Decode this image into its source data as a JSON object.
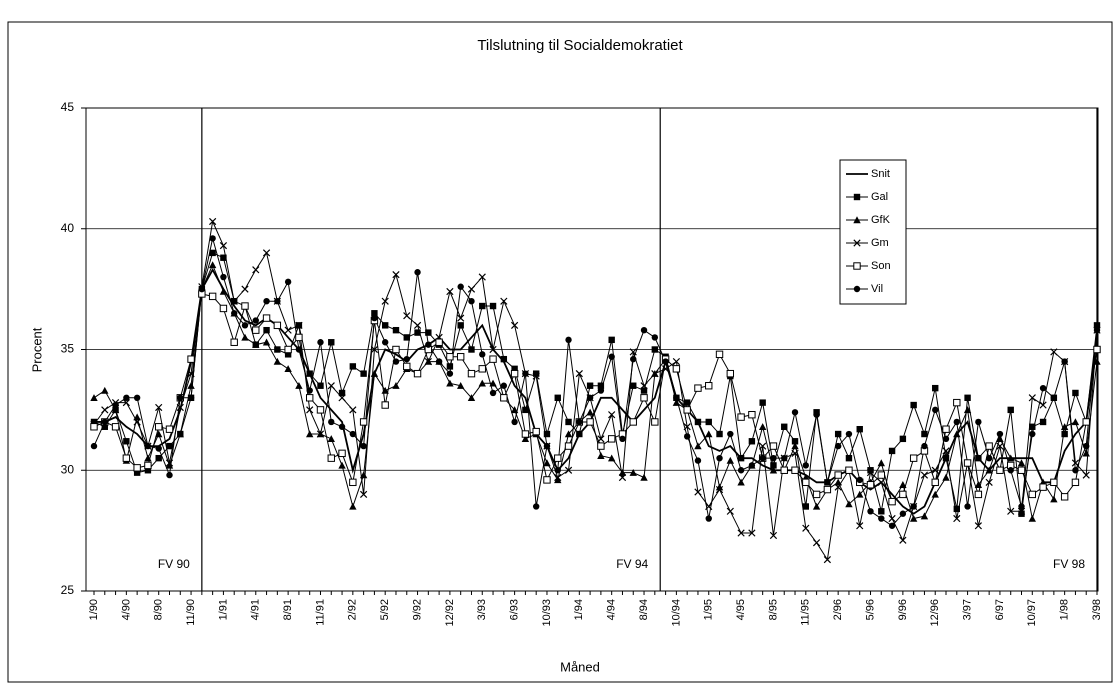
{
  "chart_data": {
    "type": "line",
    "title": "Tilslutning til Socialdemokratiet",
    "y_label": "Procent",
    "x_label": "Måned",
    "ylim": [
      25,
      45
    ],
    "yticks": [
      25,
      30,
      35,
      40,
      45
    ],
    "grid": true,
    "legend": "upper right",
    "annotations": [
      {
        "text": "FV 90",
        "x": 10
      },
      {
        "text": "FV 94",
        "x": 52.5
      },
      {
        "text": "FV 98",
        "x": 93
      }
    ],
    "categories": [
      "1/90",
      null,
      null,
      "4/90",
      null,
      null,
      "8/90",
      null,
      null,
      "11/90",
      null,
      null,
      "1/91",
      null,
      null,
      "4/91",
      null,
      null,
      "8/91",
      null,
      null,
      "11/91",
      null,
      null,
      "2/92",
      null,
      null,
      "5/92",
      null,
      null,
      "9/92",
      null,
      null,
      "12/92",
      null,
      null,
      "3/93",
      null,
      null,
      "6/93",
      null,
      null,
      "10/93",
      null,
      null,
      "1/94",
      null,
      null,
      "4/94",
      null,
      null,
      "8/94",
      null,
      null,
      "10/94",
      null,
      null,
      "1/95",
      null,
      null,
      "4/95",
      null,
      null,
      "8/95",
      null,
      null,
      "11/95",
      null,
      null,
      "2/96",
      null,
      null,
      "5/96",
      null,
      null,
      "9/96",
      null,
      null,
      "12/96",
      null,
      null,
      "3/97",
      null,
      null,
      "6/97",
      null,
      null,
      "10/97",
      null,
      null,
      "1/98",
      null,
      null,
      "3/98"
    ],
    "series": [
      {
        "name": "Snit",
        "color": "#000000",
        "marker": "none",
        "values": [
          32,
          32,
          32.2,
          31.8,
          31.5,
          31,
          31,
          31.3,
          32.5,
          34.5,
          37.5,
          38.3,
          37.5,
          36.8,
          36.2,
          36,
          36.3,
          36,
          35.5,
          35,
          34,
          33,
          32.5,
          32,
          30,
          31.5,
          34,
          35,
          34.8,
          34.5,
          35,
          35.2,
          35.5,
          35,
          35,
          35.5,
          36,
          35,
          34.5,
          33.5,
          33,
          31.5,
          31,
          30,
          30.5,
          31.5,
          32,
          33,
          33,
          32.5,
          32,
          32.5,
          33,
          34.5,
          33,
          32.5,
          32,
          31,
          30.8,
          31,
          30.5,
          30.5,
          30.2,
          30,
          30,
          30,
          29.8,
          29.5,
          29.5,
          29.8,
          30,
          29.5,
          29.2,
          29.5,
          29,
          28.5,
          28.2,
          28.5,
          29.5,
          30.5,
          31.5,
          32,
          30.5,
          30,
          30.5,
          30.5,
          30.5,
          30.5,
          29.5,
          29.5,
          30.8,
          31.5,
          32,
          35.5
        ]
      },
      {
        "name": "Gal",
        "color": "#000000",
        "marker": "square",
        "values": [
          32,
          31.8,
          32.5,
          31.2,
          29.9,
          30,
          30.5,
          31,
          31.5,
          33,
          37.5,
          39,
          38.8,
          37,
          36.8,
          35.2,
          35.8,
          35,
          34.8,
          36,
          34,
          33.5,
          35.3,
          33.2,
          34.3,
          34,
          36.5,
          36,
          35.8,
          35.5,
          35.7,
          35.7,
          35.2,
          34.3,
          36,
          35,
          36.8,
          36.8,
          34.6,
          34.2,
          32.5,
          34,
          31.5,
          33,
          32,
          31.5,
          33.5,
          33.5,
          35.4,
          31.5,
          33.5,
          33.3,
          35,
          34.7,
          33,
          32.8,
          32,
          32,
          31.5,
          33.9,
          30.5,
          31.2,
          32.8,
          30.2,
          31.8,
          31.2,
          28.5,
          32.4,
          29.5,
          31.5,
          30.5,
          31.7,
          30,
          28.3,
          30.8,
          31.3,
          32.7,
          31.5,
          33.4,
          30.5,
          28.4,
          33,
          30.5,
          31,
          30,
          32.5,
          28.2,
          31.8,
          32,
          33,
          31.5,
          33.2,
          32,
          36
        ]
      },
      {
        "name": "GfK",
        "color": "#000000",
        "marker": "triangle",
        "values": [
          33,
          33.3,
          32.5,
          30.4,
          32.2,
          30.5,
          31.5,
          30.2,
          31.5,
          33.5,
          37.5,
          38.5,
          37.4,
          36.5,
          35.5,
          35.2,
          35.3,
          34.5,
          34.2,
          33.5,
          31.5,
          31.5,
          31.3,
          30.2,
          28.5,
          29.8,
          34,
          33.3,
          33.5,
          34.2,
          34,
          34.5,
          34.5,
          33.6,
          33.5,
          33,
          33.6,
          33.6,
          33,
          32.5,
          31.3,
          31.5,
          30.3,
          29.6,
          31.5,
          32,
          32.4,
          30.6,
          30.5,
          29.9,
          29.9,
          29.7,
          34,
          34.6,
          32.8,
          32.5,
          31,
          31.5,
          29.3,
          30.4,
          29.5,
          30.2,
          31.8,
          30,
          30,
          31,
          29.7,
          28.5,
          29.2,
          29.5,
          28.6,
          29,
          29.5,
          30.3,
          28.7,
          29.4,
          28,
          28.1,
          29,
          29.7,
          31.5,
          32.5,
          29.4,
          30,
          31.3,
          30.5,
          30.3,
          28,
          29.5,
          28.8,
          31.8,
          32,
          30.7,
          34.5
        ]
      },
      {
        "name": "Gm",
        "color": "#000000",
        "marker": "cross",
        "values": [
          31.9,
          32.5,
          32.8,
          32.8,
          32,
          31,
          32.6,
          30.3,
          32.6,
          34,
          37.6,
          40.3,
          39.3,
          37,
          37.5,
          38.3,
          39,
          37,
          35.8,
          36,
          32.5,
          31.5,
          33.5,
          33,
          32.5,
          29,
          35,
          37,
          38.1,
          36.4,
          36,
          34.5,
          35.5,
          37.4,
          36.3,
          37.5,
          38,
          35,
          37,
          36,
          34,
          33.9,
          31,
          29.7,
          30,
          34,
          33,
          31.3,
          32.3,
          29.7,
          34.9,
          33.5,
          34,
          34.2,
          34.5,
          31.8,
          29.1,
          28.5,
          29.2,
          28.3,
          27.4,
          27.4,
          31,
          27.3,
          30.5,
          30.7,
          27.6,
          27,
          26.3,
          29.3,
          30,
          27.7,
          29.9,
          29.5,
          28,
          27.1,
          28.5,
          29.8,
          30,
          30.8,
          28,
          30.3,
          27.7,
          29.5,
          31,
          28.3,
          28.3,
          33,
          32.7,
          34.9,
          34.5,
          30.3,
          29.8,
          35.8
        ]
      },
      {
        "name": "Son",
        "color": "#000000",
        "marker": "open-square",
        "values": [
          31.8,
          32,
          31.8,
          30.5,
          30.1,
          30.2,
          31.8,
          31.7,
          33,
          34.6,
          37.3,
          37.2,
          36.7,
          35.3,
          36.8,
          35.8,
          36.3,
          36,
          35,
          35.5,
          33,
          32.5,
          30.5,
          30.7,
          29.5,
          32,
          36.2,
          32.7,
          35,
          34.3,
          34,
          35,
          35.3,
          34.7,
          34.7,
          34,
          34.2,
          34.6,
          33,
          34,
          31.5,
          31.6,
          29.6,
          30.5,
          31,
          32,
          32,
          31,
          31.3,
          31.5,
          32,
          33,
          32,
          34.6,
          34.2,
          32.5,
          33.4,
          33.5,
          34.8,
          34,
          32.2,
          32.3,
          30.5,
          31,
          30,
          30,
          29.5,
          29,
          29.2,
          29.8,
          30,
          29.5,
          29.4,
          29.8,
          28.7,
          29,
          30.5,
          30.8,
          29.5,
          31.7,
          32.8,
          30.3,
          29,
          31,
          30,
          30.2,
          30,
          29,
          29.3,
          29.5,
          28.9,
          29.5,
          32,
          35
        ]
      },
      {
        "name": "Vil",
        "color": "#000000",
        "marker": "circle",
        "values": [
          31,
          32,
          32.7,
          33,
          33,
          31,
          30.9,
          29.8,
          33,
          33,
          37.5,
          39.6,
          38,
          36.5,
          36,
          36.2,
          37,
          37,
          37.8,
          35,
          33.3,
          35.3,
          32,
          31.8,
          31.5,
          31,
          36.3,
          35.3,
          34.5,
          34.6,
          38.2,
          35.2,
          34.5,
          34,
          37.6,
          37,
          34.8,
          33.2,
          33.5,
          32,
          34,
          28.5,
          31,
          30,
          35.4,
          32,
          33,
          33.3,
          34.7,
          31.3,
          34.6,
          35.8,
          35.5,
          34.5,
          33,
          31.4,
          30.4,
          28,
          30.5,
          31.5,
          30,
          30.2,
          30.5,
          30.5,
          30.5,
          32.4,
          30.2,
          32.3,
          29.5,
          31,
          31.5,
          29.6,
          28.3,
          28,
          27.7,
          28.2,
          28.5,
          31,
          32.5,
          31.3,
          32,
          28.5,
          32,
          30.5,
          31.5,
          30,
          28.5,
          31.5,
          33.4,
          33,
          34.5,
          30,
          31,
          35.8
        ]
      }
    ]
  }
}
